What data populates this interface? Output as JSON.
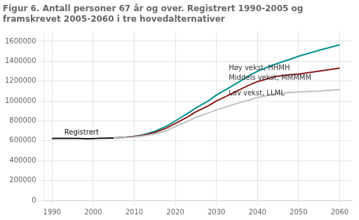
{
  "chart_data": {
    "type": "line",
    "title": "Figur 6. Antall personer 67 år og over. Registrert 1990-2005 og\nframskrevet 2005-2060 i tre hovedalternativer",
    "series": [
      {
        "color": "#111111",
        "x": [
          1990,
          1991,
          1992,
          1993,
          1994,
          1995,
          1996,
          1997,
          1998,
          1999,
          2000,
          2001,
          2002,
          2003,
          2004,
          2005
        ],
        "values": [
          622000,
          623000,
          624000,
          624000,
          624000,
          624000,
          623000,
          622000,
          621000,
          621000,
          622000,
          623000,
          625000,
          626000,
          627000,
          628000
        ]
      },
      {
        "color": "#C0C0C0",
        "x": [
          2005,
          2006,
          2007,
          2008,
          2009,
          2010,
          2012,
          2015,
          2018,
          2020,
          2023,
          2025,
          2028,
          2030,
          2033,
          2035,
          2038,
          2040,
          2043,
          2045,
          2048,
          2050,
          2055,
          2060
        ],
        "values": [
          628000,
          629000,
          631000,
          633000,
          635000,
          638000,
          647000,
          668000,
          705000,
          743000,
          795000,
          835000,
          878000,
          910000,
          950000,
          975000,
          1010000,
          1035000,
          1060000,
          1075000,
          1085000,
          1090000,
          1100000,
          1115000
        ]
      },
      {
        "color": "#8B1A1A",
        "x": [
          2005,
          2006,
          2007,
          2008,
          2009,
          2010,
          2012,
          2015,
          2018,
          2020,
          2023,
          2025,
          2028,
          2030,
          2033,
          2035,
          2038,
          2040,
          2043,
          2045,
          2048,
          2050,
          2055,
          2060
        ],
        "values": [
          628000,
          630000,
          633000,
          635000,
          638000,
          642000,
          653000,
          683000,
          730000,
          775000,
          840000,
          890000,
          950000,
          1000000,
          1060000,
          1100000,
          1160000,
          1195000,
          1230000,
          1250000,
          1265000,
          1270000,
          1300000,
          1330000
        ]
      },
      {
        "color": "#009090",
        "x": [
          2005,
          2006,
          2007,
          2008,
          2009,
          2010,
          2012,
          2015,
          2018,
          2020,
          2023,
          2025,
          2028,
          2030,
          2033,
          2035,
          2038,
          2040,
          2043,
          2045,
          2048,
          2050,
          2055,
          2060
        ],
        "values": [
          628000,
          630000,
          633000,
          636000,
          640000,
          645000,
          658000,
          695000,
          750000,
          800000,
          875000,
          930000,
          1000000,
          1060000,
          1130000,
          1180000,
          1255000,
          1300000,
          1350000,
          1380000,
          1420000,
          1450000,
          1510000,
          1565000
        ]
      }
    ],
    "xlim": [
      1988,
      2063
    ],
    "xticks": [
      1990,
      2000,
      2010,
      2020,
      2030,
      2040,
      2050,
      2060
    ],
    "ylim": [
      0,
      1700000
    ],
    "yticks": [
      0,
      200000,
      400000,
      600000,
      800000,
      1000000,
      1200000,
      1400000,
      1600000
    ],
    "grid": true,
    "annotations": [
      {
        "text": "Registrert",
        "x": 1993,
        "y": 648000,
        "color": "#111111"
      },
      {
        "text": "Høy vekst, HHMH",
        "x": 2033,
        "y": 1295000,
        "color": "#333333"
      },
      {
        "text": "Middels vekst, MMMMM",
        "x": 2033,
        "y": 1195000,
        "color": "#333333"
      },
      {
        "text": "Lav vekst, LLML",
        "x": 2033,
        "y": 1040000,
        "color": "#333333"
      }
    ]
  }
}
